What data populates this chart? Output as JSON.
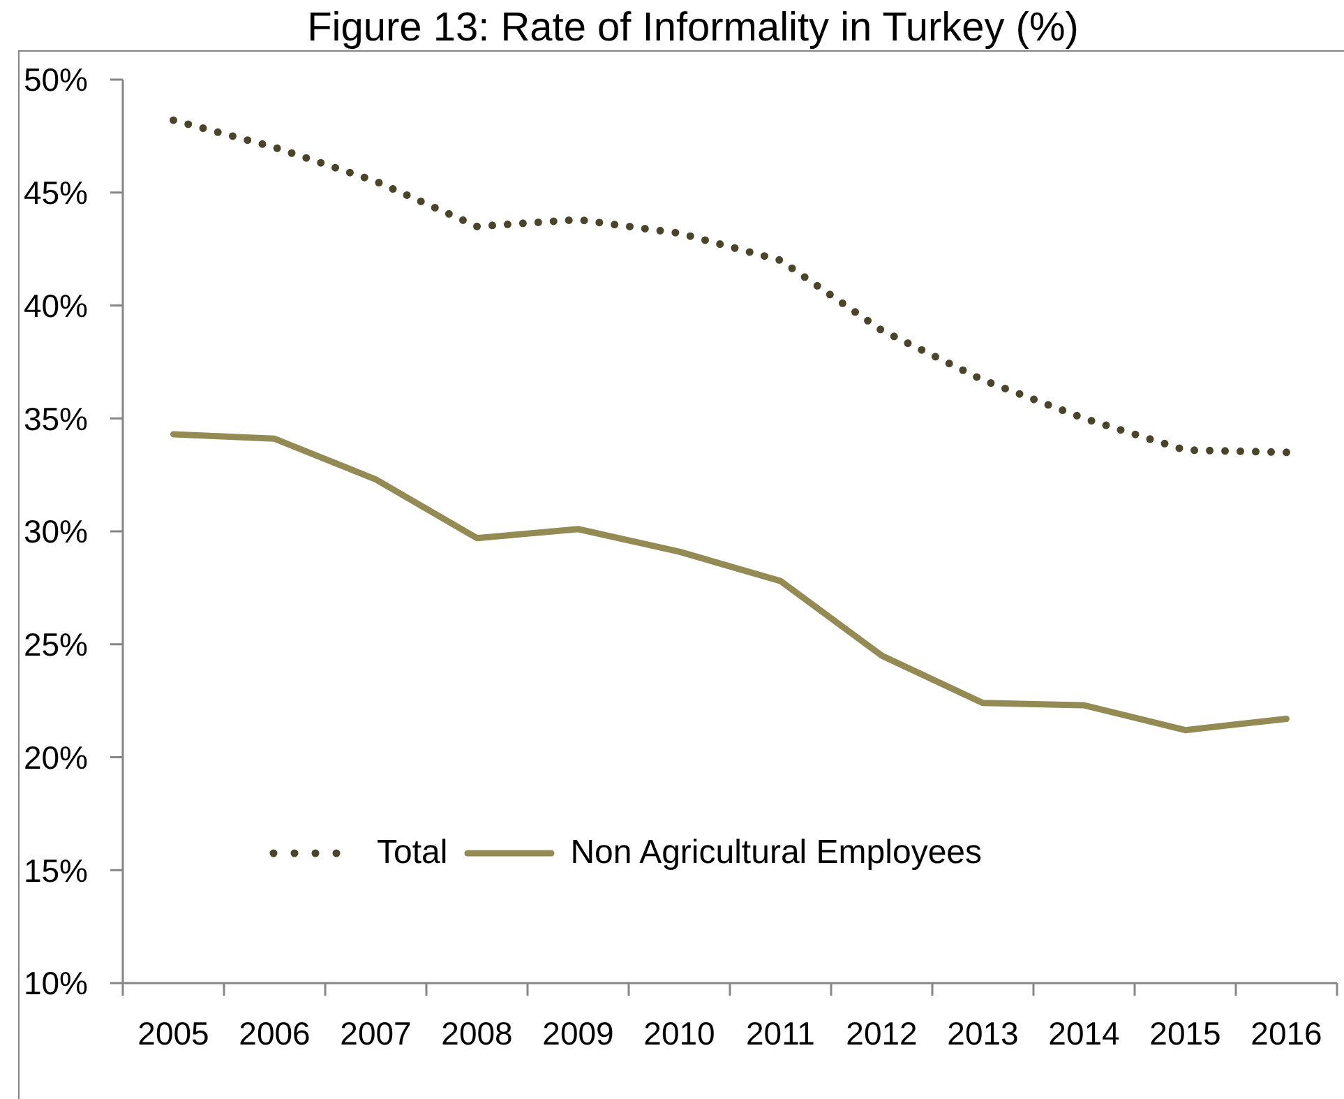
{
  "chart_data": {
    "type": "line",
    "title": "Figure 13: Rate of Informality in Turkey (%)",
    "categories": [
      "2005",
      "2006",
      "2007",
      "2008",
      "2009",
      "2010",
      "2011",
      "2012",
      "2013",
      "2014",
      "2015",
      "2016"
    ],
    "series": [
      {
        "name": "Total",
        "color": "#4a452a",
        "line_style": "dotted",
        "values": [
          48.2,
          47.0,
          45.5,
          43.5,
          43.8,
          43.2,
          42.0,
          38.9,
          36.7,
          35.0,
          33.6,
          33.5
        ]
      },
      {
        "name": "Non Agricultural Employees",
        "color": "#948a54",
        "line_style": "solid",
        "values": [
          34.3,
          34.1,
          32.3,
          29.7,
          30.1,
          29.1,
          27.8,
          24.5,
          22.4,
          22.3,
          21.2,
          21.7
        ]
      }
    ],
    "ylim": [
      10,
      50
    ],
    "yticks": [
      {
        "value": 10,
        "label": "10%"
      },
      {
        "value": 15,
        "label": "15%"
      },
      {
        "value": 20,
        "label": "20%"
      },
      {
        "value": 25,
        "label": "25%"
      },
      {
        "value": 30,
        "label": "30%"
      },
      {
        "value": 35,
        "label": "35%"
      },
      {
        "value": 40,
        "label": "40%"
      },
      {
        "value": 45,
        "label": "45%"
      },
      {
        "value": 50,
        "label": "50%"
      }
    ],
    "legend": "bottom",
    "marker": "none"
  }
}
